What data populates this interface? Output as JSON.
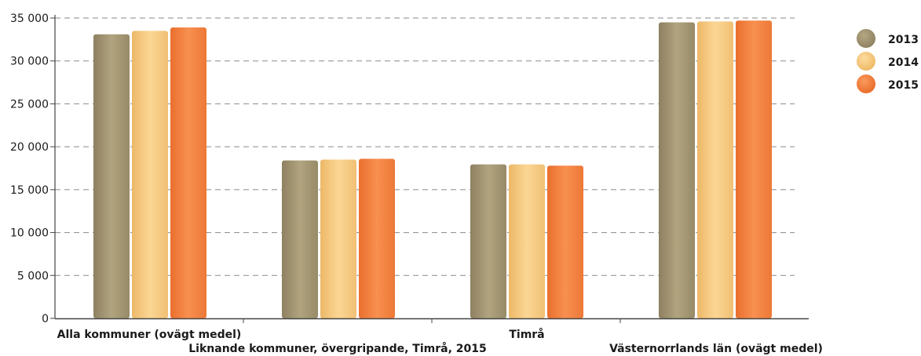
{
  "chart_data": {
    "type": "bar",
    "categories": [
      "Alla kommuner (ovägt medel)",
      "Liknande kommuner, övergripande, Timrå, 2015",
      "Timrå",
      "Västernorrlands län (ovägt medel)"
    ],
    "series": [
      {
        "name": "2013",
        "values": [
          33100,
          18400,
          17950,
          34500
        ],
        "color": "#a39570"
      },
      {
        "name": "2014",
        "values": [
          33500,
          18500,
          17950,
          34600
        ],
        "color": "#f5c77e"
      },
      {
        "name": "2015",
        "values": [
          33900,
          18600,
          17800,
          34700
        ],
        "color": "#f0803c"
      }
    ],
    "yticks": [
      "0",
      "5 000",
      "10 000",
      "15 000",
      "20 000",
      "25 000",
      "30 000",
      "35 000"
    ],
    "ylim": [
      0,
      35000
    ],
    "grid": true,
    "legend_position": "right",
    "title": "",
    "xlabel": "",
    "ylabel": ""
  }
}
